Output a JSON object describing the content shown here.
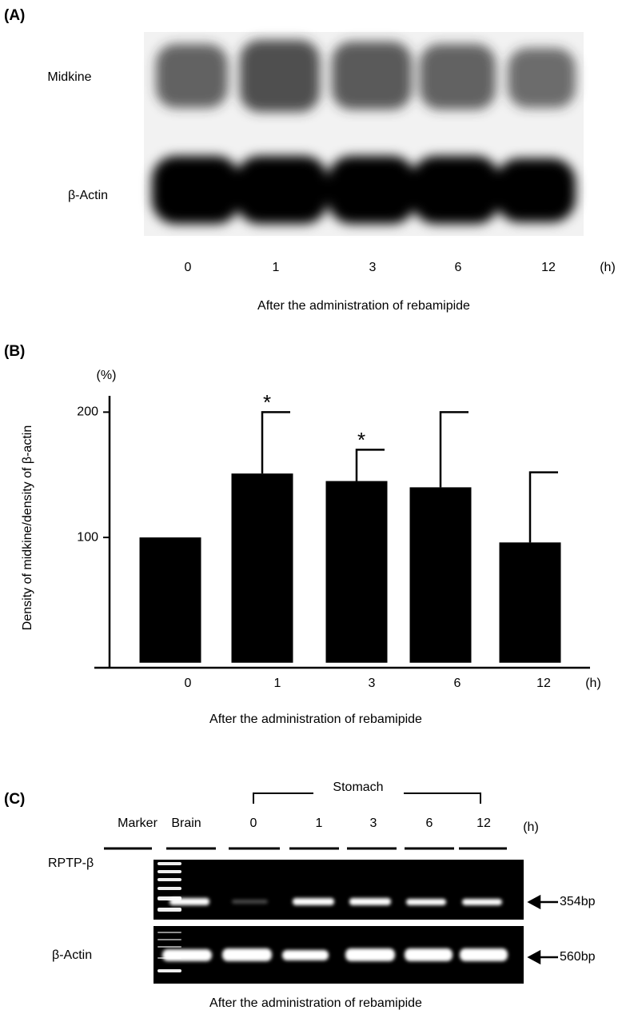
{
  "panel_a": {
    "label": "(A)",
    "rows": [
      "Midkine",
      "β-Actin"
    ],
    "lanes": [
      "0",
      "1",
      "3",
      "6",
      "12"
    ],
    "unit": "(h)",
    "caption": "After the administration of rebamipide"
  },
  "panel_b": {
    "label": "(B)"
  },
  "chart_data": {
    "type": "bar",
    "y_unit": "(%)",
    "y_label": "Density of midkine/density of β-actin",
    "x_label": "After the administration of rebamipide",
    "x_unit": "(h)",
    "categories": [
      "0",
      "1",
      "3",
      "6",
      "12"
    ],
    "values": [
      100,
      151,
      145,
      140,
      96
    ],
    "errors": [
      0,
      49,
      25,
      60,
      56
    ],
    "color": "#000000",
    "annotations": [
      {
        "category": "1",
        "text": "*"
      },
      {
        "category": "3",
        "text": "*"
      }
    ],
    "ylim": [
      -4,
      213
    ],
    "yticks": [
      100,
      200
    ]
  },
  "panel_c": {
    "label": "(C)",
    "group": "Stomach",
    "lanes": [
      "Marker",
      "Brain",
      "0",
      "1",
      "3",
      "6",
      "12"
    ],
    "unit": "(h)",
    "rows": [
      {
        "label": "RPTP-β",
        "size": "354bp"
      },
      {
        "label": "β-Actin",
        "size": "560bp"
      }
    ],
    "caption": "After the administration of rebamipide"
  }
}
